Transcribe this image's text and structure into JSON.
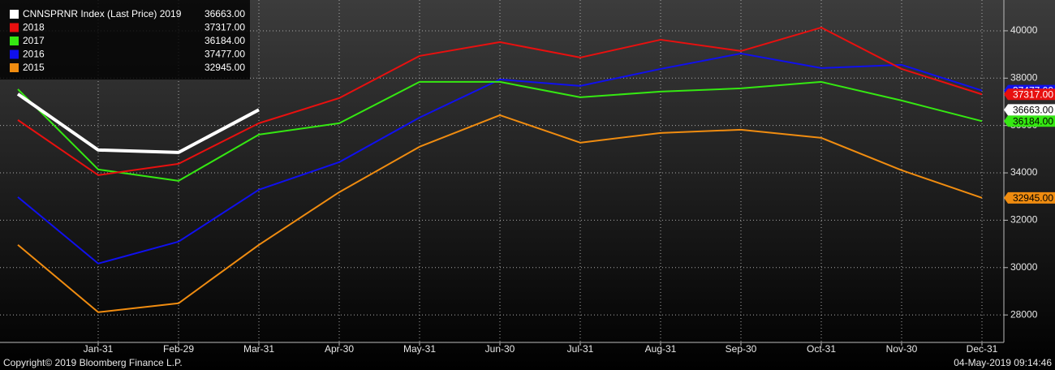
{
  "chart_data": {
    "type": "line",
    "categories": [
      null,
      "Jan-31",
      "Feb-29",
      "Mar-31",
      "Apr-30",
      "May-31",
      "Jun-30",
      "Jul-31",
      "Aug-31",
      "Sep-30",
      "Oct-31",
      "Nov-30",
      "Dec-31"
    ],
    "series": [
      {
        "name": "CNNSPRNR Index (Last Price) 2019",
        "color": "#ffffff",
        "values": [
          37330,
          34966,
          34863,
          36663,
          null,
          null,
          null,
          null,
          null,
          null,
          null,
          null,
          null
        ],
        "value_labels": [
          null,
          null,
          null,
          "36663.00",
          null,
          null,
          null,
          null,
          null,
          null,
          null,
          null,
          null
        ]
      },
      {
        "name": "2018",
        "color": "#e8100f",
        "values": [
          36233,
          33904,
          34384,
          36096,
          37158,
          38938,
          39521,
          38870,
          39623,
          39144,
          40137,
          38390,
          37317
        ],
        "value_labels": [
          null,
          null,
          null,
          null,
          null,
          null,
          null,
          null,
          null,
          null,
          null,
          null,
          "37317.00"
        ]
      },
      {
        "name": "2017",
        "color": "#35e812",
        "values": [
          37534,
          34144,
          33664,
          35616,
          36096,
          37842,
          37842,
          37192,
          37432,
          37568,
          37842,
          37055,
          36184
        ],
        "value_labels": [
          null,
          null,
          null,
          null,
          null,
          null,
          null,
          null,
          null,
          null,
          null,
          null,
          "36184.00"
        ]
      },
      {
        "name": "2016",
        "color": "#1010ee",
        "values": [
          32979,
          30171,
          31096,
          33288,
          34452,
          36336,
          37945,
          37671,
          38390,
          39041,
          38425,
          38562,
          37477
        ],
        "value_labels": [
          null,
          null,
          null,
          null,
          null,
          null,
          null,
          null,
          null,
          null,
          null,
          null,
          "37477.00"
        ]
      },
      {
        "name": "2015",
        "color": "#f08c10",
        "values": [
          30959,
          28116,
          28493,
          30959,
          33185,
          35103,
          36438,
          35274,
          35685,
          35822,
          35479,
          34110,
          32945
        ],
        "value_labels": [
          null,
          null,
          null,
          null,
          null,
          null,
          null,
          null,
          null,
          null,
          null,
          null,
          "32945.00"
        ]
      }
    ],
    "ylim": [
      26840,
      41300
    ],
    "yticks": [
      28000,
      30000,
      32000,
      34000,
      36000,
      38000,
      40000
    ],
    "grid": true,
    "legend": "upper left",
    "footer_left": "Copyright© 2019 Bloomberg Finance L.P.",
    "footer_right": "04-May-2019 09:14:46"
  }
}
